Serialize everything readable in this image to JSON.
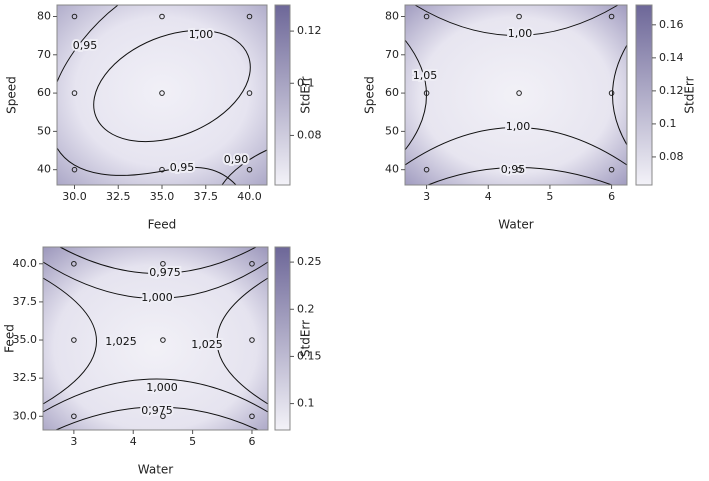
{
  "chart_data": [
    {
      "type": "contour",
      "x_label": "Feed",
      "y_label": "Speed",
      "xlim": [
        29,
        41
      ],
      "ylim": [
        36,
        83
      ],
      "xticks": [
        {
          "value": 30,
          "label": "30.0"
        },
        32.5,
        {
          "value": 35,
          "label": "35.0"
        },
        37.5,
        {
          "value": 40,
          "label": "40.0"
        }
      ],
      "yticks": [
        40,
        50,
        60,
        70,
        80
      ],
      "points": {
        "x": [
          30,
          35,
          40,
          30,
          35,
          40,
          30,
          35,
          40
        ],
        "y": [
          80,
          80,
          80,
          60,
          60,
          60,
          40,
          40,
          40
        ]
      },
      "contours": [
        {
          "value": 0.95,
          "label": "0,95"
        },
        {
          "value": 1.0,
          "label": "1,00"
        },
        {
          "value": 0.95,
          "label": "0,95"
        },
        {
          "value": 0.9,
          "label": "0,90"
        }
      ],
      "colorbar": {
        "label": "StdErr",
        "lim": [
          0.061,
          0.13
        ],
        "ticks": [
          0.08,
          0.1,
          0.12
        ],
        "colors": [
          "#f3f2f8",
          "#6d6798"
        ]
      }
    },
    {
      "type": "contour",
      "x_label": "Water",
      "y_label": "Speed",
      "xlim": [
        2.65,
        6.25
      ],
      "ylim": [
        36,
        83
      ],
      "xticks": [
        3,
        4,
        5,
        6
      ],
      "yticks": [
        40,
        50,
        60,
        70,
        80
      ],
      "points": {
        "x": [
          3,
          4.5,
          6,
          3,
          4.5,
          6,
          3,
          4.5,
          6
        ],
        "y": [
          80,
          80,
          80,
          60,
          60,
          60,
          40,
          40,
          40
        ]
      },
      "contours": [
        {
          "value": 1.0,
          "label": "1,00"
        },
        {
          "value": 1.05,
          "label": "1,05"
        },
        1.05,
        {
          "value": 1.0,
          "label": "1,00"
        },
        {
          "value": 0.95,
          "label": "0,95"
        }
      ],
      "colorbar": {
        "label": "StdErr",
        "lim": [
          0.063,
          0.172
        ],
        "ticks": [
          0.08,
          0.1,
          0.12,
          0.14,
          0.16
        ],
        "colors": [
          "#f3f2f8",
          "#6d6798"
        ]
      }
    },
    {
      "type": "contour",
      "x_label": "Water",
      "y_label": "Feed",
      "xlim": [
        2.48,
        6.27
      ],
      "ylim": [
        29.1,
        41.1
      ],
      "xticks": [
        3,
        4,
        5,
        6
      ],
      "yticks": [
        {
          "value": 30,
          "label": "30.0"
        },
        32.5,
        {
          "value": 35,
          "label": "35.0"
        },
        37.5,
        {
          "value": 40,
          "label": "40.0"
        }
      ],
      "points": {
        "x": [
          3,
          4.5,
          6,
          3,
          4.5,
          6,
          3,
          4.5,
          6
        ],
        "y": [
          40,
          40,
          40,
          35,
          35,
          35,
          30,
          30,
          30
        ]
      },
      "contours": [
        {
          "value": 0.975,
          "label": "0,975"
        },
        {
          "value": 1.0,
          "label": "1,000"
        },
        {
          "value": 1.025,
          "label": "1,025"
        },
        {
          "value": 1.025,
          "label": "1,025"
        },
        {
          "value": 1.0,
          "label": "1,000"
        },
        {
          "value": 0.975,
          "label": "0,975"
        }
      ],
      "colorbar": {
        "label": "StdErr",
        "lim": [
          0.072,
          0.266
        ],
        "ticks": [
          0.1,
          0.15,
          0.2,
          0.25
        ],
        "colors": [
          "#f3f2f8",
          "#6d6798"
        ]
      }
    }
  ]
}
